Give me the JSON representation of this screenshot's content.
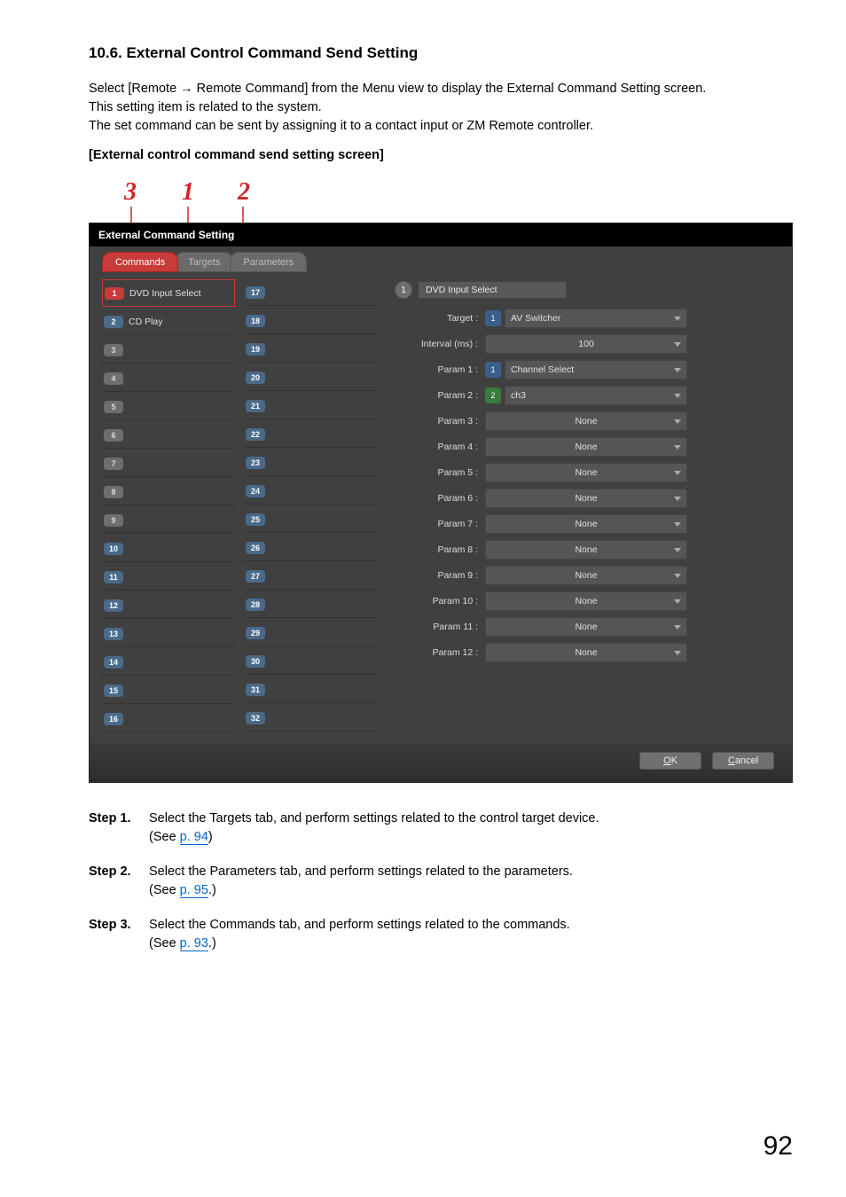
{
  "heading": "10.6. External Control Command Send Setting",
  "intro_line1": "Select [Remote  →  Remote Command] from the Menu view to display the External Command Setting screen.",
  "intro_line2": "This setting item is related to the system.",
  "intro_line3": "The set command can be sent by assigning it to a contact input or ZM Remote controller.",
  "subheading": "[External control command send setting screen]",
  "callouts": {
    "c1": "1",
    "c2": "2",
    "c3": "3"
  },
  "app": {
    "title": "External Command Setting",
    "tabs": {
      "commands": "Commands",
      "targets": "Targets",
      "parameters": "Parameters"
    },
    "left": [
      {
        "n": "1",
        "label": "DVD Input Select",
        "filled": true,
        "selected": true
      },
      {
        "n": "2",
        "label": "CD Play",
        "filled": true
      },
      {
        "n": "3",
        "label": "",
        "filled": false
      },
      {
        "n": "4",
        "label": "",
        "filled": false
      },
      {
        "n": "5",
        "label": "",
        "filled": false
      },
      {
        "n": "6",
        "label": "",
        "filled": false
      },
      {
        "n": "7",
        "label": "",
        "filled": false
      },
      {
        "n": "8",
        "label": "",
        "filled": false
      },
      {
        "n": "9",
        "label": "",
        "filled": false
      },
      {
        "n": "10",
        "label": "",
        "filled": true
      },
      {
        "n": "11",
        "label": "",
        "filled": true
      },
      {
        "n": "12",
        "label": "",
        "filled": true
      },
      {
        "n": "13",
        "label": "",
        "filled": true
      },
      {
        "n": "14",
        "label": "",
        "filled": true
      },
      {
        "n": "15",
        "label": "",
        "filled": true
      },
      {
        "n": "16",
        "label": "",
        "filled": true
      }
    ],
    "right": [
      {
        "n": "17",
        "label": "",
        "filled": true
      },
      {
        "n": "18",
        "label": "",
        "filled": true
      },
      {
        "n": "19",
        "label": "",
        "filled": true
      },
      {
        "n": "20",
        "label": "",
        "filled": true
      },
      {
        "n": "21",
        "label": "",
        "filled": true
      },
      {
        "n": "22",
        "label": "",
        "filled": true
      },
      {
        "n": "23",
        "label": "",
        "filled": true
      },
      {
        "n": "24",
        "label": "",
        "filled": true
      },
      {
        "n": "25",
        "label": "",
        "filled": true
      },
      {
        "n": "26",
        "label": "",
        "filled": true
      },
      {
        "n": "27",
        "label": "",
        "filled": true
      },
      {
        "n": "28",
        "label": "",
        "filled": true
      },
      {
        "n": "29",
        "label": "",
        "filled": true
      },
      {
        "n": "30",
        "label": "",
        "filled": true
      },
      {
        "n": "31",
        "label": "",
        "filled": true
      },
      {
        "n": "32",
        "label": "",
        "filled": true
      }
    ],
    "detail": {
      "index": "1",
      "name": "DVD Input Select",
      "rows": [
        {
          "label": "Target :",
          "chip": "1",
          "chipColor": "blue",
          "value": "AV Switcher"
        },
        {
          "label": "Interval (ms) :",
          "value": "100",
          "center": true
        },
        {
          "label": "Param 1 :",
          "chip": "1",
          "chipColor": "blue",
          "value": "Channel Select"
        },
        {
          "label": "Param 2 :",
          "chip": "2",
          "chipColor": "green",
          "value": "ch3"
        },
        {
          "label": "Param 3 :",
          "value": "None",
          "center": true
        },
        {
          "label": "Param 4 :",
          "value": "None",
          "center": true
        },
        {
          "label": "Param 5 :",
          "value": "None",
          "center": true
        },
        {
          "label": "Param 6 :",
          "value": "None",
          "center": true
        },
        {
          "label": "Param 7 :",
          "value": "None",
          "center": true
        },
        {
          "label": "Param 8 :",
          "value": "None",
          "center": true
        },
        {
          "label": "Param 9 :",
          "value": "None",
          "center": true
        },
        {
          "label": "Param 10 :",
          "value": "None",
          "center": true
        },
        {
          "label": "Param 11 :",
          "value": "None",
          "center": true
        },
        {
          "label": "Param 12 :",
          "value": "None",
          "center": true
        }
      ]
    },
    "buttons": {
      "ok": "OK",
      "cancel": "Cancel"
    }
  },
  "steps": [
    {
      "label": "Step 1.",
      "text": "Select the Targets tab, and perform settings related to the control target device.",
      "see": "(See ",
      "link": "p. 94",
      "after": ")"
    },
    {
      "label": "Step 2.",
      "text": "Select the Parameters tab, and perform settings related to the parameters.",
      "see": "(See ",
      "link": "p. 95",
      "after": ".)"
    },
    {
      "label": "Step 3.",
      "text": "Select the Commands tab, and perform settings related to the commands.",
      "see": "(See ",
      "link": "p. 93",
      "after": ".)"
    }
  ],
  "pagenum": "92"
}
